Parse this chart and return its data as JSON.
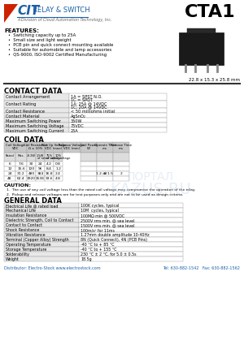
{
  "title": "CTA1",
  "dimensions": "22.8 x 15.3 x 25.8 mm",
  "features_title": "FEATURES:",
  "features": [
    "Switching capacity up to 25A",
    "Small size and light weight",
    "PCB pin and quick connect mounting available",
    "Suitable for automobile and lamp accessories",
    "QS-9000, ISO-9002 Certified Manufacturing"
  ],
  "contact_data_title": "CONTACT DATA",
  "contact_data": [
    [
      "Contact Arrangement",
      "1A = SPST N.O.\n1C = SPDT"
    ],
    [
      "Contact Rating",
      "1A: 25A @ 14VDC\n1C: 20A @ 14VDC"
    ],
    [
      "Contact Resistance",
      "< 50 milliohms initial"
    ],
    [
      "Contact Material",
      "AgSnO₂"
    ],
    [
      "Maximum Switching Power",
      "350W"
    ],
    [
      "Maximum Switching Voltage",
      "75VDC"
    ],
    [
      "Maximum Switching Current",
      "25A"
    ]
  ],
  "coil_data_title": "COIL DATA",
  "coil_rows": [
    [
      "6",
      "7.6",
      "30",
      "24",
      "4.2",
      "0.8",
      "",
      "",
      "",
      ""
    ],
    [
      "12",
      "15.6",
      "120",
      "96",
      "8.4",
      "1.2",
      "",
      "",
      "",
      ""
    ],
    [
      "24",
      "31.2",
      "480",
      "384",
      "16.8",
      "2.4",
      "1.2 or 1.5",
      "10",
      "",
      "2"
    ],
    [
      "48",
      "62.4",
      "1920",
      "1536",
      "33.6",
      "4.8",
      "",
      "",
      "",
      ""
    ]
  ],
  "caution_title": "CAUTION:",
  "cautions": [
    "The use of any coil voltage less than the rated coil voltage may compromise the operation of the relay.",
    "Pickup and release voltages are for test purposes only and are not to be used as design criteria."
  ],
  "general_data_title": "GENERAL DATA",
  "general_data": [
    [
      "Electrical Life @ rated load",
      "100K cycles, typical"
    ],
    [
      "Mechanical Life",
      "10M  cycles, typical"
    ],
    [
      "Insulation Resistance",
      "100MΩ min @ 500VDC"
    ],
    [
      "Dielectric Strength, Coil to Contact",
      "2500V rms min. @ sea level"
    ],
    [
      "Contact to Contact",
      "1500V rms min. @ sea level"
    ],
    [
      "Shock Resistance",
      "100m/s² for 11ms"
    ],
    [
      "Vibration Resistance",
      "1.27mm double amplitude 10-40Hz"
    ],
    [
      "Terminal (Copper Alloy) Strength",
      "8N (Quick Connect), 4N (PCB Pins)"
    ],
    [
      "Operating Temperature",
      "-40 °C to + 85 °C"
    ],
    [
      "Storage Temperature",
      "-40 °C to + 155 °C"
    ],
    [
      "Solderability",
      "230 °C ± 2 °C, for 5.0 ± 0.5s"
    ],
    [
      "Weight",
      "18.5g"
    ]
  ],
  "footer_left": "Distributor: Electro-Stock www.electrostock.com",
  "footer_right": "Tel: 630-882-1542   Fax: 630-882-1562",
  "bg_color": "#ffffff",
  "logo_blue": "#1a5fa8",
  "logo_red": "#cc2200",
  "footer_blue": "#1a5fa8",
  "gray_cell": "#e8e8e8",
  "header_cell": "#c8c8c8",
  "border_color": "#999999"
}
